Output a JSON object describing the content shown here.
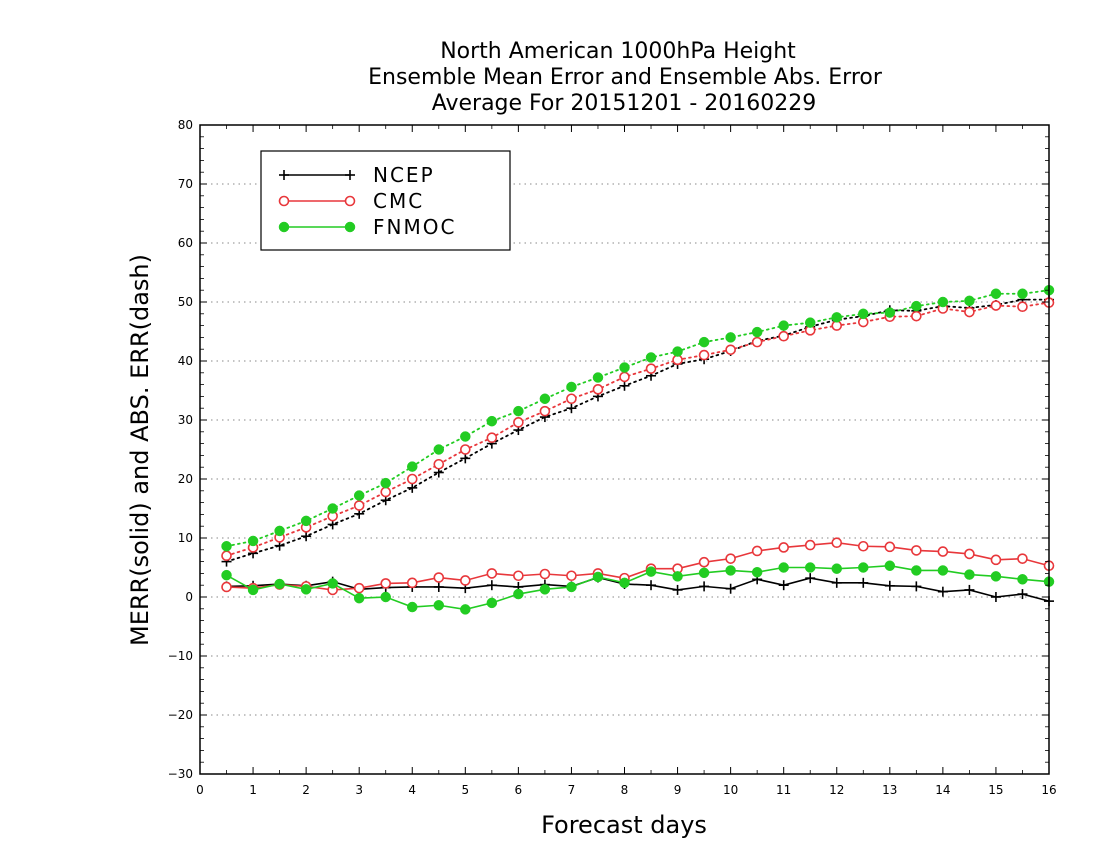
{
  "chart_data": {
    "type": "line",
    "title_lines": [
      "North American 1000hPa Height",
      "Ensemble Mean Error and Ensemble Abs. Error",
      "Average For 20151201 - 20160229"
    ],
    "xlabel": "Forecast days",
    "ylabel": "MERR(solid) and ABS. ERR(dash)",
    "xlim": [
      0,
      16
    ],
    "ylim": [
      -30,
      80
    ],
    "x_ticks": [
      "0",
      "1",
      "2",
      "3",
      "4",
      "5",
      "6",
      "7",
      "8",
      "9",
      "10",
      "11",
      "12",
      "13",
      "14",
      "15",
      "16"
    ],
    "y_ticks": [
      "−30",
      "−20",
      "−10",
      "0",
      "10",
      "20",
      "30",
      "40",
      "50",
      "60",
      "70",
      "80"
    ],
    "grid": "horizontal dotted",
    "legend_position": "top-left",
    "x": [
      0.5,
      1,
      1.5,
      2,
      2.5,
      3,
      3.5,
      4,
      4.5,
      5,
      5.5,
      6,
      6.5,
      7,
      7.5,
      8,
      8.5,
      9,
      9.5,
      10,
      10.5,
      11,
      11.5,
      12,
      12.5,
      13,
      13.5,
      14,
      14.5,
      15,
      15.5,
      16
    ],
    "series": [
      {
        "name": "NCEP",
        "color": "#000000",
        "marker": "plus",
        "merr": [
          1.8,
          1.9,
          2.2,
          1.9,
          2.6,
          1.3,
          1.6,
          1.7,
          1.7,
          1.5,
          2.0,
          1.7,
          2.1,
          1.8,
          3.3,
          2.2,
          2.0,
          1.2,
          1.8,
          1.4,
          3.0,
          2.0,
          3.2,
          2.4,
          2.4,
          1.9,
          1.8,
          0.9,
          1.2,
          0.0,
          0.5,
          -0.7
        ],
        "abs_err": [
          6.0,
          7.4,
          8.7,
          10.3,
          12.3,
          14.1,
          16.4,
          18.5,
          21.1,
          23.5,
          26.0,
          28.3,
          30.5,
          32.0,
          34.0,
          35.8,
          37.5,
          39.5,
          40.3,
          41.7,
          43.4,
          44.3,
          45.8,
          47.0,
          47.6,
          48.6,
          48.5,
          49.3,
          49.0,
          49.5,
          50.4,
          50.4
        ]
      },
      {
        "name": "CMC",
        "color": "#e8373b",
        "marker": "open-circle",
        "merr": [
          1.7,
          1.5,
          2.1,
          1.8,
          1.2,
          1.5,
          2.3,
          2.4,
          3.3,
          2.8,
          4.0,
          3.6,
          3.9,
          3.6,
          4.0,
          3.2,
          4.8,
          4.8,
          5.9,
          6.5,
          7.8,
          8.4,
          8.8,
          9.2,
          8.6,
          8.5,
          7.9,
          7.7,
          7.3,
          6.3,
          6.5,
          5.3
        ],
        "abs_err": [
          7.0,
          8.4,
          10.1,
          11.8,
          13.7,
          15.5,
          17.8,
          20.0,
          22.5,
          25.0,
          27.0,
          29.6,
          31.5,
          33.6,
          35.2,
          37.3,
          38.7,
          40.2,
          41.0,
          41.9,
          43.2,
          44.2,
          45.2,
          46.0,
          46.6,
          47.5,
          47.6,
          48.9,
          48.3,
          49.4,
          49.2,
          49.9
        ]
      },
      {
        "name": "FNMOC",
        "color": "#22cc22",
        "marker": "filled-circle",
        "merr": [
          3.7,
          1.2,
          2.2,
          1.3,
          2.3,
          -0.2,
          0.0,
          -1.7,
          -1.4,
          -2.1,
          -1.0,
          0.5,
          1.3,
          1.7,
          3.4,
          2.4,
          4.3,
          3.5,
          4.1,
          4.5,
          4.2,
          5.0,
          5.0,
          4.8,
          5.0,
          5.3,
          4.5,
          4.5,
          3.8,
          3.5,
          3.0,
          2.6
        ],
        "abs_err": [
          8.6,
          9.5,
          11.2,
          12.9,
          15.0,
          17.2,
          19.3,
          22.1,
          25.0,
          27.2,
          29.8,
          31.5,
          33.6,
          35.6,
          37.2,
          38.9,
          40.6,
          41.6,
          43.2,
          44.0,
          44.9,
          46.0,
          46.5,
          47.4,
          48.0,
          48.2,
          49.3,
          50.0,
          50.2,
          51.4,
          51.4,
          52.0
        ]
      }
    ]
  }
}
